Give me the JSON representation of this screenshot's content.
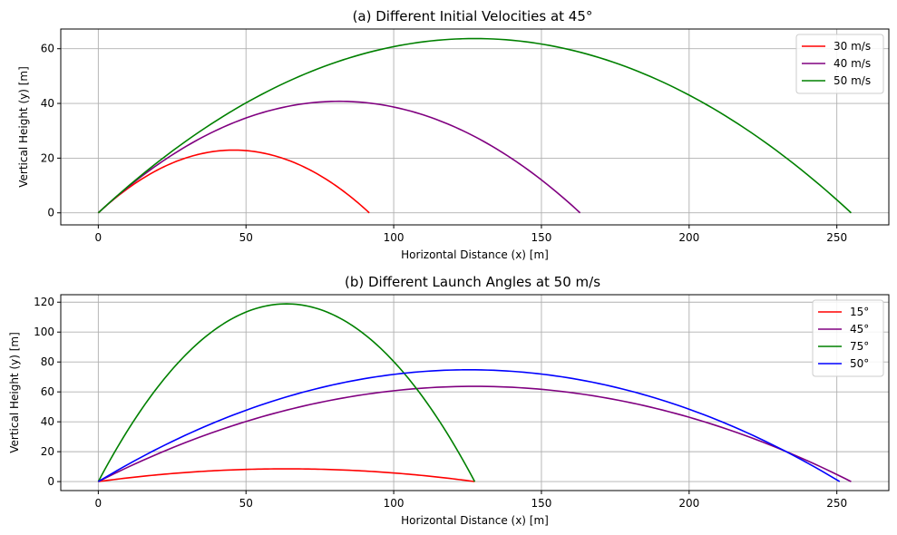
{
  "chart_data": [
    {
      "type": "line",
      "title": "(a) Different Initial Velocities at 45°",
      "xlabel": "Horizontal Distance (x) [m]",
      "ylabel": "Vertical Height (y) [m]",
      "xlim": [
        -12.7,
        267.6
      ],
      "ylim": [
        -4.4,
        67.2
      ],
      "xticks": [
        0,
        50,
        100,
        150,
        200,
        250
      ],
      "yticks": [
        0,
        20,
        40,
        60
      ],
      "grid": true,
      "legend_position": "top-right",
      "series": [
        {
          "name": "30 m/s",
          "color": "#ff0000",
          "velocity": 30,
          "angle": 45
        },
        {
          "name": "40 m/s",
          "color": "#800080",
          "velocity": 40,
          "angle": 45
        },
        {
          "name": "50 m/s",
          "color": "#008000",
          "velocity": 50,
          "angle": 45
        }
      ]
    },
    {
      "type": "line",
      "title": "(b) Different Launch Angles at 50 m/s",
      "xlabel": "Horizontal Distance (x) [m]",
      "ylabel": "Vertical Height (y) [m]",
      "xlim": [
        -12.7,
        267.6
      ],
      "ylim": [
        -6,
        125
      ],
      "xticks": [
        0,
        50,
        100,
        150,
        200,
        250
      ],
      "yticks": [
        0,
        20,
        40,
        60,
        80,
        100,
        120
      ],
      "grid": true,
      "legend_position": "top-right",
      "series": [
        {
          "name": "15°",
          "color": "#ff0000",
          "velocity": 50,
          "angle": 15
        },
        {
          "name": "45°",
          "color": "#800080",
          "velocity": 50,
          "angle": 45
        },
        {
          "name": "75°",
          "color": "#008000",
          "velocity": 50,
          "angle": 75
        },
        {
          "name": "50°",
          "color": "#0000ff",
          "velocity": 50,
          "angle": 50
        }
      ]
    }
  ]
}
